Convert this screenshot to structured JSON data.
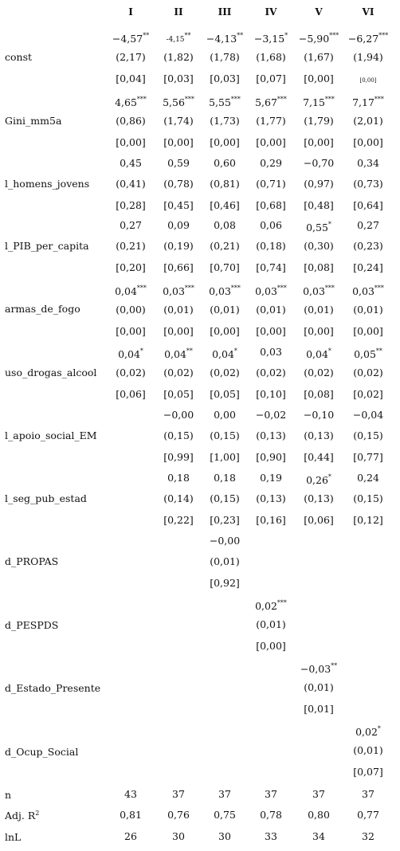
{
  "columns": [
    "I",
    "II",
    "III",
    "IV",
    "V",
    "VI"
  ],
  "rows": [
    {
      "var": "const",
      "coef": [
        {
          "v": "−4,57",
          "s": "**"
        },
        {
          "v": "-4,15",
          "s": "**",
          "small": true
        },
        {
          "v": "−4,13",
          "s": "**"
        },
        {
          "v": "−3,15",
          "s": "*"
        },
        {
          "v": "−5,90",
          "s": "***"
        },
        {
          "v": "−6,27",
          "s": "***"
        }
      ],
      "se": [
        "(2,17)",
        "(1,82)",
        "(1,78)",
        "(1,68)",
        "(1,67)",
        "(1,94)"
      ],
      "p": [
        "[0,04]",
        "[0,03]",
        "[0,03]",
        "[0,07]",
        "[0,00]",
        "[0,00]"
      ],
      "p_small": [
        false,
        false,
        false,
        false,
        false,
        true
      ]
    },
    {
      "var": "Gini_mm5a",
      "coef": [
        {
          "v": "4,65",
          "s": "***"
        },
        {
          "v": "5,56",
          "s": "***"
        },
        {
          "v": "5,55",
          "s": "***"
        },
        {
          "v": "5,67",
          "s": "***"
        },
        {
          "v": "7,15",
          "s": "***"
        },
        {
          "v": "7,17",
          "s": "***"
        }
      ],
      "se": [
        "(0,86)",
        "(1,74)",
        "(1,73)",
        "(1,77)",
        "(1,79)",
        "(2,01)"
      ],
      "p": [
        "[0,00]",
        "[0,00]",
        "[0,00]",
        "[0,00]",
        "[0,00]",
        "[0,00]"
      ]
    },
    {
      "var": "l_homens_jovens",
      "coef": [
        {
          "v": "0,45",
          "s": ""
        },
        {
          "v": "0,59",
          "s": ""
        },
        {
          "v": "0,60",
          "s": ""
        },
        {
          "v": "0,29",
          "s": ""
        },
        {
          "v": "−0,70",
          "s": ""
        },
        {
          "v": "0,34",
          "s": ""
        }
      ],
      "se": [
        "(0,41)",
        "(0,78)",
        "(0,81)",
        "(0,71)",
        "(0,97)",
        "(0,73)"
      ],
      "p": [
        "[0,28]",
        "[0,45]",
        "[0,46]",
        "[0,68]",
        "[0,48]",
        "[0,64]"
      ]
    },
    {
      "var": "l_PIB_per_capita",
      "coef": [
        {
          "v": "0,27",
          "s": ""
        },
        {
          "v": "0,09",
          "s": ""
        },
        {
          "v": "0,08",
          "s": ""
        },
        {
          "v": "0,06",
          "s": ""
        },
        {
          "v": "0,55",
          "s": "*"
        },
        {
          "v": "0,27",
          "s": ""
        }
      ],
      "se": [
        "(0,21)",
        "(0,19)",
        "(0,21)",
        "(0,18)",
        "(0,30)",
        "(0,23)"
      ],
      "p": [
        "[0,20]",
        "[0,66]",
        "[0,70]",
        "[0,74]",
        "[0,08]",
        "[0,24]"
      ]
    },
    {
      "var": "armas_de_fogo",
      "coef": [
        {
          "v": "0,04",
          "s": "***"
        },
        {
          "v": "0,03",
          "s": "***"
        },
        {
          "v": "0,03",
          "s": "***"
        },
        {
          "v": "0,03",
          "s": "***"
        },
        {
          "v": "0,03",
          "s": "***"
        },
        {
          "v": "0,03",
          "s": "***"
        }
      ],
      "se": [
        "(0,00)",
        "(0,01)",
        "(0,01)",
        "(0,01)",
        "(0,01)",
        "(0,01)"
      ],
      "p": [
        "[0,00]",
        "[0,00]",
        "[0,00]",
        "[0,00]",
        "[0,00]",
        "[0,00]"
      ]
    },
    {
      "var": "uso_drogas_alcool",
      "coef": [
        {
          "v": "0,04",
          "s": "*"
        },
        {
          "v": "0,04",
          "s": "**"
        },
        {
          "v": "0,04",
          "s": "*"
        },
        {
          "v": "0,03",
          "s": ""
        },
        {
          "v": "0,04",
          "s": "*"
        },
        {
          "v": "0,05",
          "s": "**"
        }
      ],
      "se": [
        "(0,02)",
        "(0,02)",
        "(0,02)",
        "(0,02)",
        "(0,02)",
        "(0,02)"
      ],
      "p": [
        "[0,06]",
        "[0,05]",
        "[0,05]",
        "[0,10]",
        "[0,08]",
        "[0,02]"
      ]
    },
    {
      "var": "l_apoio_social_EM",
      "coef": [
        null,
        {
          "v": "−0,00",
          "s": ""
        },
        {
          "v": "0,00",
          "s": ""
        },
        {
          "v": "−0,02",
          "s": ""
        },
        {
          "v": "−0,10",
          "s": ""
        },
        {
          "v": "−0,04",
          "s": ""
        }
      ],
      "se": [
        null,
        "(0,15)",
        "(0,15)",
        "(0,13)",
        "(0,13)",
        "(0,15)"
      ],
      "p": [
        null,
        "[0,99]",
        "[1,00]",
        "[0,90]",
        "[0,44]",
        "[0,77]"
      ]
    },
    {
      "var": "l_seg_pub_estad",
      "coef": [
        null,
        {
          "v": "0,18",
          "s": ""
        },
        {
          "v": "0,18",
          "s": ""
        },
        {
          "v": "0,19",
          "s": ""
        },
        {
          "v": "0,26",
          "s": "*"
        },
        {
          "v": "0,24",
          "s": ""
        }
      ],
      "se": [
        null,
        "(0,14)",
        "(0,15)",
        "(0,13)",
        "(0,13)",
        "(0,15)"
      ],
      "p": [
        null,
        "[0,22]",
        "[0,23]",
        "[0,16]",
        "[0,06]",
        "[0,12]"
      ]
    },
    {
      "var": "d_PROPAS",
      "coef": [
        null,
        null,
        {
          "v": "−0,00",
          "s": ""
        },
        null,
        null,
        null
      ],
      "se": [
        null,
        null,
        "(0,01)",
        null,
        null,
        null
      ],
      "p": [
        null,
        null,
        "[0,92]",
        null,
        null,
        null
      ]
    },
    {
      "var": "d_PESPDS",
      "coef": [
        null,
        null,
        null,
        {
          "v": "0,02",
          "s": "***"
        },
        null,
        null
      ],
      "se": [
        null,
        null,
        null,
        "(0,01)",
        null,
        null
      ],
      "p": [
        null,
        null,
        null,
        "[0,00]",
        null,
        null
      ]
    },
    {
      "var": "d_Estado_Presente",
      "coef": [
        null,
        null,
        null,
        null,
        {
          "v": "−0,03",
          "s": "**"
        },
        null
      ],
      "se": [
        null,
        null,
        null,
        null,
        "(0,01)",
        null
      ],
      "p": [
        null,
        null,
        null,
        null,
        "[0,01]",
        null
      ]
    },
    {
      "var": "d_Ocup_Social",
      "coef": [
        null,
        null,
        null,
        null,
        null,
        {
          "v": "0,02",
          "s": "*"
        }
      ],
      "se": [
        null,
        null,
        null,
        null,
        null,
        "(0,01)"
      ],
      "p": [
        null,
        null,
        null,
        null,
        null,
        "[0,07]"
      ]
    }
  ],
  "stats": [
    {
      "label": "n",
      "values": [
        "43",
        "37",
        "37",
        "37",
        "37",
        "37"
      ]
    },
    {
      "label": "Adj. R",
      "label_sup": "2",
      "values": [
        "0,81",
        "0,76",
        "0,75",
        "0,78",
        "0,80",
        "0,77"
      ]
    },
    {
      "label": "lnL",
      "values": [
        "26",
        "30",
        "30",
        "33",
        "34",
        "32"
      ]
    }
  ]
}
